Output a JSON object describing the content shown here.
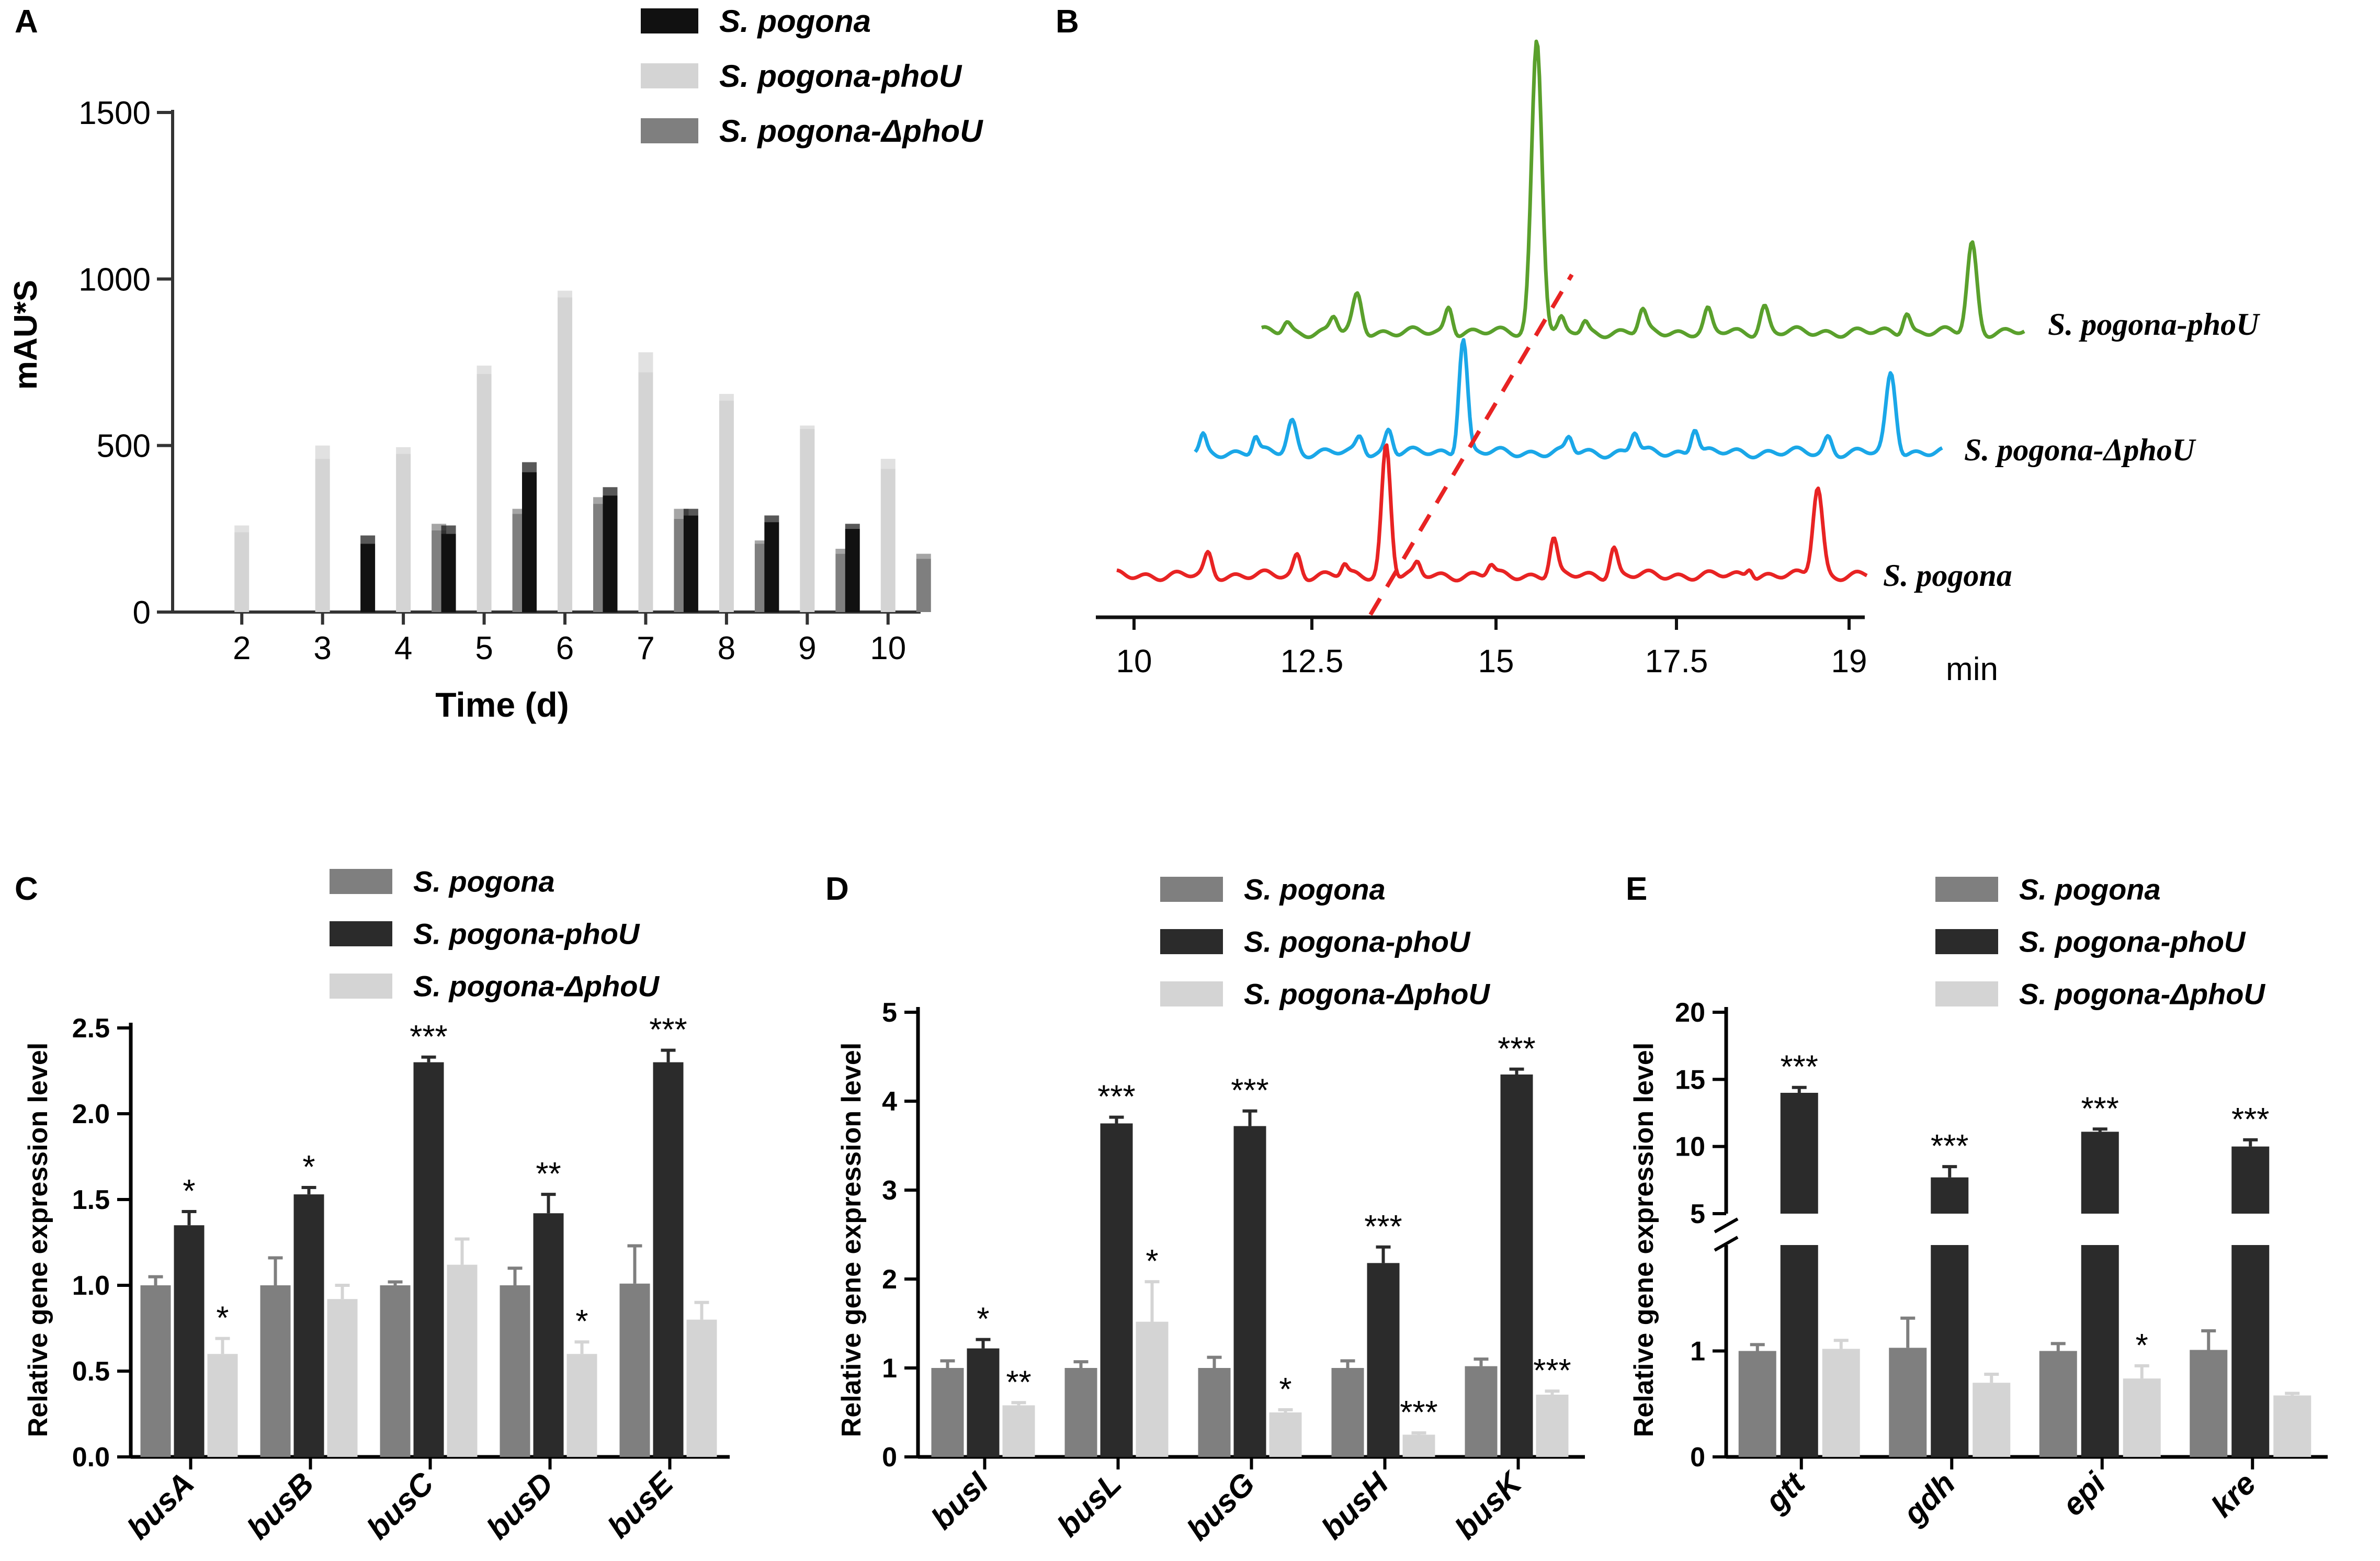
{
  "colors": {
    "black": "#111111",
    "light": "#d4d4d4",
    "mid": "#7f7f7f",
    "dark": "#2b2b2b",
    "green": "#5aa02c",
    "blue": "#1aa7e8",
    "red": "#e82323",
    "dash": "#e82323"
  },
  "chart_data": [
    {
      "panel": "A",
      "type": "bar",
      "ylabel": "mAU*S",
      "xlabel": "Time (d)",
      "ylim": [
        0,
        1500
      ],
      "yticks": [
        0,
        500,
        1000,
        1500
      ],
      "categories": [
        "2",
        "3",
        "4",
        "5",
        "6",
        "7",
        "8",
        "9",
        "10"
      ],
      "series": [
        {
          "name": "S. pogona",
          "color": "black",
          "values": [
            0,
            0,
            205,
            235,
            420,
            350,
            290,
            270,
            250
          ],
          "errors": [
            0,
            0,
            25,
            25,
            30,
            25,
            20,
            20,
            15
          ]
        },
        {
          "name": "S. pogona-phoU",
          "color": "light",
          "values": [
            240,
            460,
            475,
            715,
            945,
            720,
            635,
            550,
            430
          ],
          "errors": [
            20,
            40,
            20,
            25,
            20,
            60,
            20,
            10,
            30
          ]
        },
        {
          "name": "S. pogona-ΔphoU",
          "color": "mid",
          "values": [
            0,
            0,
            245,
            295,
            325,
            280,
            205,
            175,
            160
          ],
          "errors": [
            0,
            0,
            20,
            15,
            20,
            30,
            10,
            15,
            15
          ]
        }
      ]
    },
    {
      "panel": "B",
      "type": "line",
      "xlabel": "min",
      "xticks": [
        "10",
        "12.5",
        "15",
        "17.5",
        "19"
      ],
      "traces": [
        {
          "name": "S. pogona-phoU",
          "color": "green"
        },
        {
          "name": "S. pogona-ΔphoU",
          "color": "blue"
        },
        {
          "name": "S. pogona",
          "color": "red"
        }
      ]
    },
    {
      "panel": "C",
      "type": "bar",
      "ylabel": "Relative gene expression level",
      "ylim": [
        0,
        2.5
      ],
      "yticks": [
        "0.0",
        "0.5",
        "1.0",
        "1.5",
        "2.0",
        "2.5"
      ],
      "categories": [
        "busA",
        "busB",
        "busC",
        "busD",
        "busE"
      ],
      "series": [
        {
          "name": "S. pogona",
          "color": "mid",
          "values": [
            1.0,
            1.0,
            1.0,
            1.0,
            1.01
          ],
          "errors": [
            0.05,
            0.16,
            0.02,
            0.1,
            0.22
          ]
        },
        {
          "name": "S. pogona-phoU",
          "color": "dark",
          "values": [
            1.35,
            1.53,
            2.3,
            1.42,
            2.3
          ],
          "errors": [
            0.08,
            0.04,
            0.03,
            0.11,
            0.07
          ]
        },
        {
          "name": "S. pogona-ΔphoU",
          "color": "light",
          "values": [
            0.6,
            0.92,
            1.12,
            0.6,
            0.8
          ],
          "errors": [
            0.09,
            0.08,
            0.15,
            0.07,
            0.1
          ]
        }
      ],
      "significance": [
        [
          "",
          "*",
          "*"
        ],
        [
          "",
          "*",
          ""
        ],
        [
          "",
          "***",
          ""
        ],
        [
          "",
          "**",
          "*"
        ],
        [
          "",
          "***",
          ""
        ]
      ]
    },
    {
      "panel": "D",
      "type": "bar",
      "ylabel": "Relative gene expression level",
      "ylim": [
        0,
        5
      ],
      "yticks": [
        "0",
        "1",
        "2",
        "3",
        "4",
        "5"
      ],
      "categories": [
        "busI",
        "busL",
        "busG",
        "busH",
        "busK"
      ],
      "series": [
        {
          "name": "S. pogona",
          "color": "mid",
          "values": [
            1.0,
            1.0,
            1.0,
            1.0,
            1.02
          ],
          "errors": [
            0.08,
            0.07,
            0.12,
            0.08,
            0.08
          ]
        },
        {
          "name": "S. pogona-phoU",
          "color": "dark",
          "values": [
            1.22,
            3.75,
            3.72,
            2.18,
            4.3
          ],
          "errors": [
            0.1,
            0.07,
            0.17,
            0.18,
            0.06
          ]
        },
        {
          "name": "S. pogona-ΔphoU",
          "color": "light",
          "values": [
            0.58,
            1.52,
            0.5,
            0.25,
            0.7
          ],
          "errors": [
            0.03,
            0.45,
            0.03,
            0.02,
            0.04
          ]
        }
      ],
      "significance": [
        [
          "",
          "*",
          "**"
        ],
        [
          "",
          "***",
          "*"
        ],
        [
          "",
          "***",
          "*"
        ],
        [
          "",
          "***",
          "***"
        ],
        [
          "",
          "***",
          "***"
        ]
      ]
    },
    {
      "panel": "E",
      "type": "bar",
      "ylabel": "Relative gene expression level",
      "yaxis_break": true,
      "ylim_lower": [
        0,
        2
      ],
      "ylim_upper": [
        5,
        20
      ],
      "yticks": [
        "0",
        "1",
        "5",
        "10",
        "15",
        "20"
      ],
      "categories": [
        "gtt",
        "gdh",
        "epi",
        "kre"
      ],
      "series": [
        {
          "name": "S. pogona",
          "color": "mid",
          "values": [
            1.0,
            1.03,
            1.0,
            1.01
          ],
          "errors": [
            0.06,
            0.28,
            0.07,
            0.18
          ]
        },
        {
          "name": "S. pogona-phoU",
          "color": "dark",
          "values": [
            14.0,
            7.7,
            11.1,
            10.0
          ],
          "errors": [
            0.4,
            0.8,
            0.2,
            0.5
          ]
        },
        {
          "name": "S. pogona-ΔphoU",
          "color": "light",
          "values": [
            1.02,
            0.7,
            0.74,
            0.58
          ],
          "errors": [
            0.08,
            0.08,
            0.12,
            0.02
          ]
        }
      ],
      "significance": [
        [
          "",
          "***",
          ""
        ],
        [
          "",
          "***",
          ""
        ],
        [
          "",
          "***",
          "*"
        ],
        [
          "",
          "***",
          ""
        ]
      ]
    }
  ]
}
